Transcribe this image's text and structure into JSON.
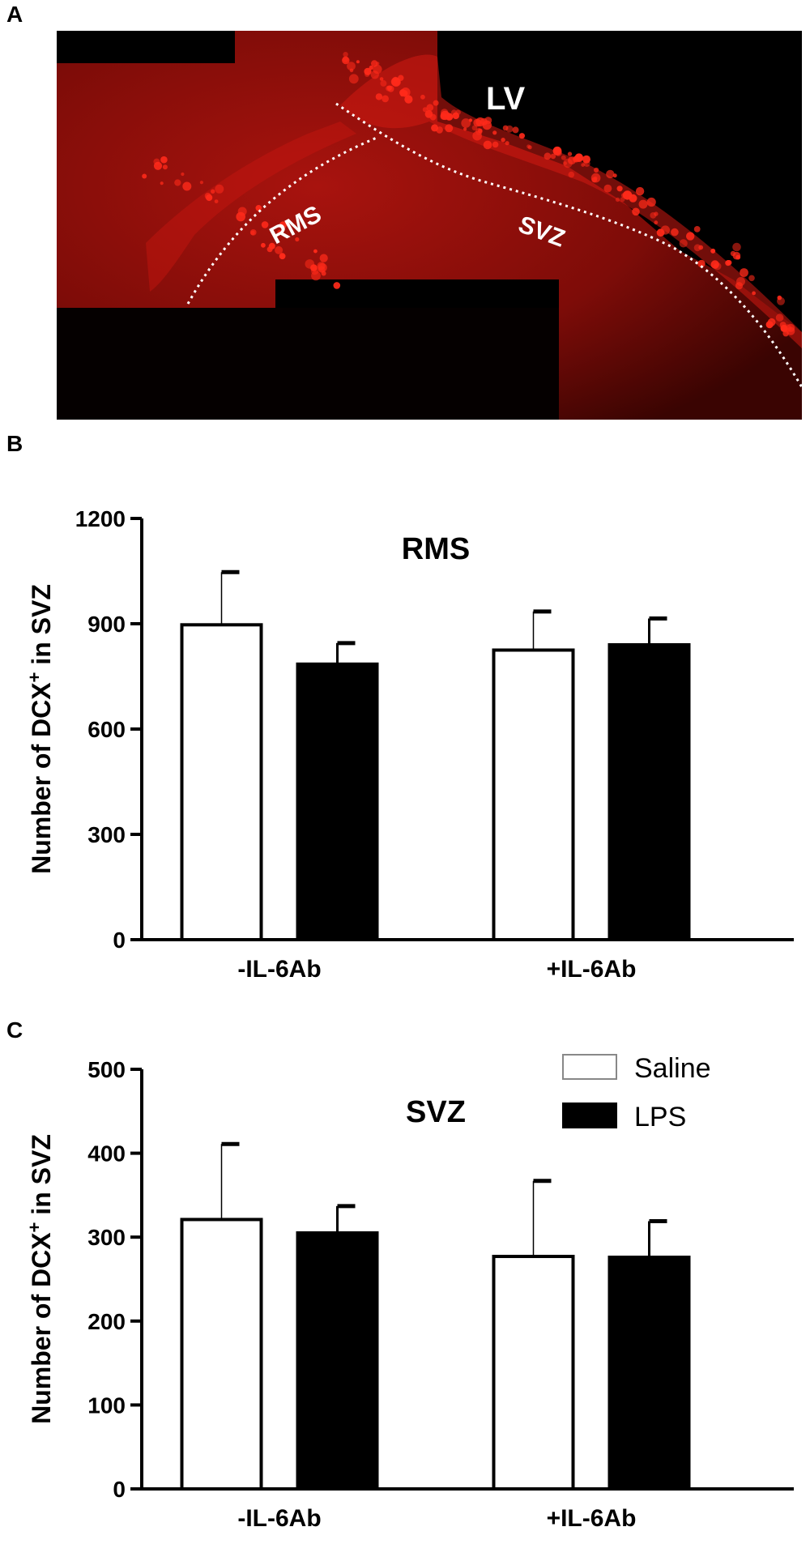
{
  "panels": {
    "a": {
      "letter": "A",
      "labels": {
        "lv": "LV",
        "rms": "RMS",
        "svz": "SVZ"
      }
    },
    "b": {
      "letter": "B"
    },
    "c": {
      "letter": "C"
    }
  },
  "colors": {
    "tissue_red": "#b3140f",
    "cell_red": "#ff2a1a",
    "background": "#000000",
    "bar_lps": "#000000",
    "bar_saline": "#ffffff"
  },
  "chart_data": [
    {
      "type": "bar",
      "title": "RMS",
      "ylabel": "Number of DCX",
      "ylabel_superscript": "+",
      "ylabel_suffix": " in SVZ",
      "categories": [
        "-IL-6Ab",
        "+IL-6Ab"
      ],
      "ylim": [
        0,
        1200
      ],
      "yticks": [
        0,
        300,
        600,
        900,
        1200
      ],
      "series": [
        {
          "name": "Saline",
          "values": [
            897,
            825
          ],
          "error": [
            150,
            110
          ]
        },
        {
          "name": "LPS",
          "values": [
            785,
            840
          ],
          "error": [
            60,
            75
          ]
        }
      ]
    },
    {
      "type": "bar",
      "title": "SVZ",
      "ylabel": "Number of DCX",
      "ylabel_superscript": "+",
      "ylabel_suffix": " in SVZ",
      "categories": [
        "-IL-6Ab",
        "+IL-6Ab"
      ],
      "ylim": [
        0,
        500
      ],
      "yticks": [
        0,
        100,
        200,
        300,
        400,
        500
      ],
      "legend": {
        "position": "top-right",
        "entries": [
          "Saline",
          "LPS"
        ]
      },
      "series": [
        {
          "name": "Saline",
          "values": [
            321,
            277
          ],
          "error": [
            90,
            90
          ]
        },
        {
          "name": "LPS",
          "values": [
            305,
            276
          ],
          "error": [
            32,
            43
          ]
        }
      ]
    }
  ]
}
